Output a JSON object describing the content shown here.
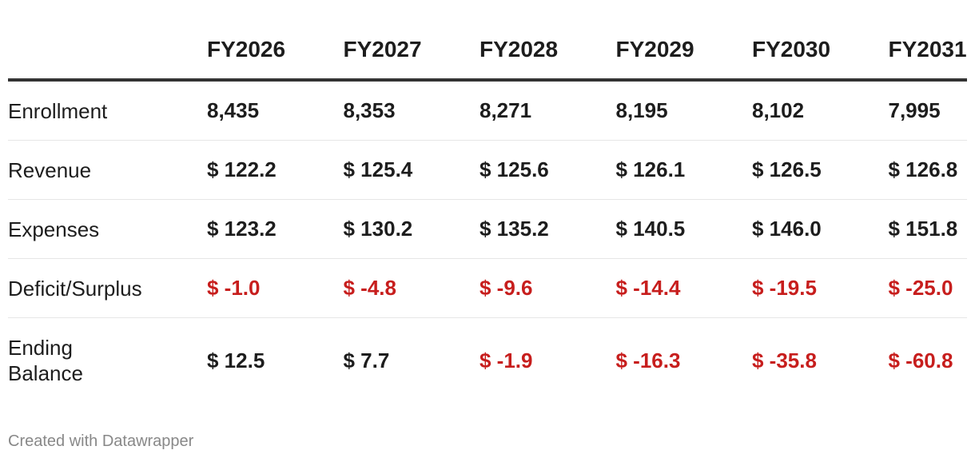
{
  "table": {
    "columns": [
      "FY2026",
      "FY2027",
      "FY2028",
      "FY2029",
      "FY2030",
      "FY2031"
    ],
    "rows": [
      {
        "label": "Enrollment",
        "cells": [
          "8,435",
          "8,353",
          "8,271",
          "8,195",
          "8,102",
          "7,995"
        ]
      },
      {
        "label": "Revenue",
        "cells": [
          "$ 122.2",
          "$ 125.4",
          "$ 125.6",
          "$ 126.1",
          "$ 126.5",
          "$ 126.8"
        ]
      },
      {
        "label": "Expenses",
        "cells": [
          "$ 123.2",
          "$ 130.2",
          "$ 135.2",
          "$ 140.5",
          "$ 146.0",
          "$ 151.8"
        ]
      },
      {
        "label": "Deficit/Surplus",
        "cells": [
          "$ -1.0",
          "$ -4.8",
          "$ -9.6",
          "$ -14.4",
          "$ -19.5",
          "$ -25.0"
        ]
      },
      {
        "label": "Ending Balance",
        "cells": [
          "$ 12.5",
          "$ 7.7",
          "$ -1.9",
          "$ -16.3",
          "$ -35.8",
          "$ -60.8"
        ]
      }
    ],
    "negative_color": "#c71e1d"
  },
  "footer": {
    "credit": "Created with Datawrapper"
  }
}
